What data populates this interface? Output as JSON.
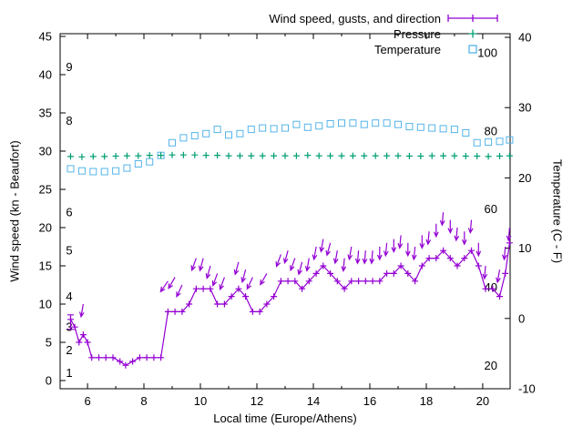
{
  "chart_data": {
    "type": "line",
    "xlabel": "Local time (Europe/Athens)",
    "ylabel_left": "Wind speed (kn - Beaufort)",
    "ylabel_right": "Temperature (C - F)",
    "x_range": [
      5.03,
      20.97
    ],
    "left_range": [
      -1.07,
      45.36
    ],
    "right_range": [
      -10,
      40.52
    ],
    "x_ticks": [
      6,
      8,
      10,
      12,
      14,
      16,
      18,
      20
    ],
    "x_minor_ticks": [
      7,
      9,
      11,
      13,
      15,
      17,
      19
    ],
    "left_ticks": [
      0,
      5,
      10,
      15,
      20,
      25,
      30,
      35,
      40,
      45
    ],
    "right_ticks": [
      -10,
      0,
      10,
      20,
      30,
      40
    ],
    "beaufort_labels": [
      {
        "label": "1",
        "kn": 1
      },
      {
        "label": "2",
        "kn": 4
      },
      {
        "label": "3",
        "kn": 7
      },
      {
        "label": "4",
        "kn": 11
      },
      {
        "label": "5",
        "kn": 17
      },
      {
        "label": "6",
        "kn": 22
      },
      {
        "label": "8",
        "kn": 34
      },
      {
        "label": "9",
        "kn": 41
      }
    ],
    "fahrenheit_labels": [
      {
        "label": "20",
        "c": -6.67
      },
      {
        "label": "40",
        "c": 4.44
      },
      {
        "label": "60",
        "c": 15.56
      },
      {
        "label": "80",
        "c": 26.67
      },
      {
        "label": "100",
        "c": 37.78
      }
    ],
    "legend": [
      {
        "label": "Wind speed, gusts, and direction",
        "color": "#9400d3",
        "sample": "errorbar-plus"
      },
      {
        "label": "Pressure",
        "color": "#009e73",
        "sample": "plus"
      },
      {
        "label": "Temperature",
        "color": "#56b4e9",
        "sample": "square"
      }
    ],
    "series": {
      "wind": {
        "name": "Wind speed (kn)",
        "color": "#9400d3",
        "points": [
          [
            5.4,
            8
          ],
          [
            5.55,
            7
          ],
          [
            5.7,
            5
          ],
          [
            5.85,
            6
          ],
          [
            6.0,
            5
          ],
          [
            6.15,
            3
          ],
          [
            6.4,
            3
          ],
          [
            6.65,
            3
          ],
          [
            6.9,
            3
          ],
          [
            7.15,
            2.5
          ],
          [
            7.35,
            2
          ],
          [
            7.6,
            2.5
          ],
          [
            7.85,
            3
          ],
          [
            8.1,
            3
          ],
          [
            8.35,
            3
          ],
          [
            8.6,
            3
          ],
          [
            8.85,
            9
          ],
          [
            9.1,
            9
          ],
          [
            9.35,
            9
          ],
          [
            9.6,
            10
          ],
          [
            9.85,
            12
          ],
          [
            10.1,
            12
          ],
          [
            10.35,
            12
          ],
          [
            10.6,
            10
          ],
          [
            10.85,
            10
          ],
          [
            11.1,
            11
          ],
          [
            11.35,
            12
          ],
          [
            11.6,
            11
          ],
          [
            11.85,
            9
          ],
          [
            12.1,
            9
          ],
          [
            12.35,
            10
          ],
          [
            12.6,
            11
          ],
          [
            12.85,
            13
          ],
          [
            13.1,
            13
          ],
          [
            13.35,
            13
          ],
          [
            13.6,
            12
          ],
          [
            13.85,
            13
          ],
          [
            14.1,
            14
          ],
          [
            14.35,
            15
          ],
          [
            14.6,
            14
          ],
          [
            14.85,
            13
          ],
          [
            15.1,
            12
          ],
          [
            15.35,
            13
          ],
          [
            15.6,
            13
          ],
          [
            15.85,
            13
          ],
          [
            16.1,
            13
          ],
          [
            16.35,
            13
          ],
          [
            16.6,
            14
          ],
          [
            16.85,
            14
          ],
          [
            17.1,
            15
          ],
          [
            17.35,
            14
          ],
          [
            17.6,
            13
          ],
          [
            17.85,
            15
          ],
          [
            18.1,
            16
          ],
          [
            18.35,
            16
          ],
          [
            18.6,
            17
          ],
          [
            18.85,
            16
          ],
          [
            19.1,
            15
          ],
          [
            19.35,
            16
          ],
          [
            19.6,
            17
          ],
          [
            19.85,
            15
          ],
          [
            20.1,
            12
          ],
          [
            20.35,
            12
          ],
          [
            20.6,
            11
          ],
          [
            20.8,
            14
          ],
          [
            20.95,
            18
          ]
        ]
      },
      "wind_errorbar": {
        "t": 5.4,
        "low": 6.7,
        "high": 8.6
      },
      "gusts": {
        "name": "Gusts and direction (kn, deg)",
        "color": "#9400d3",
        "points": [
          [
            5.85,
            10,
            190
          ],
          [
            8.85,
            13,
            215
          ],
          [
            9.1,
            13.5,
            210
          ],
          [
            9.35,
            12.5,
            205
          ],
          [
            9.85,
            16,
            200
          ],
          [
            10.1,
            16,
            195
          ],
          [
            10.35,
            15,
            195
          ],
          [
            10.6,
            14,
            200
          ],
          [
            10.85,
            13.5,
            200
          ],
          [
            11.35,
            15.5,
            195
          ],
          [
            11.6,
            14.5,
            195
          ],
          [
            11.85,
            13.5,
            205
          ],
          [
            12.35,
            14,
            210
          ],
          [
            12.85,
            16.5,
            200
          ],
          [
            13.1,
            17,
            195
          ],
          [
            13.35,
            16,
            200
          ],
          [
            13.6,
            15.5,
            195
          ],
          [
            13.85,
            16,
            190
          ],
          [
            14.1,
            17.5,
            190
          ],
          [
            14.35,
            18.5,
            190
          ],
          [
            14.6,
            18,
            195
          ],
          [
            14.85,
            17,
            190
          ],
          [
            15.1,
            16,
            185
          ],
          [
            15.35,
            17.5,
            190
          ],
          [
            15.6,
            17,
            185
          ],
          [
            15.85,
            17,
            185
          ],
          [
            16.1,
            17,
            185
          ],
          [
            16.35,
            17.5,
            180
          ],
          [
            16.6,
            18,
            185
          ],
          [
            16.85,
            18.5,
            180
          ],
          [
            17.1,
            19,
            185
          ],
          [
            17.35,
            18,
            180
          ],
          [
            17.6,
            17.5,
            185
          ],
          [
            17.85,
            19,
            180
          ],
          [
            18.1,
            19.5,
            185
          ],
          [
            18.35,
            20.5,
            180
          ],
          [
            18.6,
            22,
            185
          ],
          [
            18.85,
            21,
            180
          ],
          [
            19.1,
            20,
            185
          ],
          [
            19.35,
            19.5,
            180
          ],
          [
            19.6,
            21,
            185
          ],
          [
            19.85,
            18,
            180
          ],
          [
            20.1,
            15,
            185
          ],
          [
            20.6,
            14.5,
            190
          ],
          [
            20.8,
            17.5,
            185
          ],
          [
            20.95,
            20,
            185
          ]
        ]
      },
      "pressure": {
        "name": "Pressure (left-axis units)",
        "color": "#009e73",
        "points": [
          [
            5.4,
            29.3
          ],
          [
            5.8,
            29.25
          ],
          [
            6.2,
            29.3
          ],
          [
            6.6,
            29.3
          ],
          [
            7.0,
            29.35
          ],
          [
            7.4,
            29.4
          ],
          [
            7.8,
            29.4
          ],
          [
            8.2,
            29.45
          ],
          [
            8.6,
            29.45
          ],
          [
            9.0,
            29.5
          ],
          [
            9.4,
            29.5
          ],
          [
            9.8,
            29.5
          ],
          [
            10.2,
            29.45
          ],
          [
            10.6,
            29.45
          ],
          [
            11.0,
            29.4
          ],
          [
            11.4,
            29.4
          ],
          [
            11.8,
            29.4
          ],
          [
            12.2,
            29.4
          ],
          [
            12.6,
            29.4
          ],
          [
            13.0,
            29.4
          ],
          [
            13.4,
            29.4
          ],
          [
            13.8,
            29.45
          ],
          [
            14.2,
            29.4
          ],
          [
            14.6,
            29.4
          ],
          [
            15.0,
            29.4
          ],
          [
            15.4,
            29.4
          ],
          [
            15.8,
            29.4
          ],
          [
            16.2,
            29.4
          ],
          [
            16.6,
            29.4
          ],
          [
            17.0,
            29.4
          ],
          [
            17.4,
            29.35
          ],
          [
            17.8,
            29.35
          ],
          [
            18.2,
            29.4
          ],
          [
            18.6,
            29.4
          ],
          [
            19.0,
            29.4
          ],
          [
            19.4,
            29.35
          ],
          [
            19.8,
            29.35
          ],
          [
            20.2,
            29.3
          ],
          [
            20.6,
            29.35
          ],
          [
            20.95,
            29.4
          ]
        ]
      },
      "temperature": {
        "name": "Temperature (C)",
        "color": "#56b4e9",
        "points": [
          [
            5.4,
            21.3
          ],
          [
            5.8,
            21.0
          ],
          [
            6.2,
            20.9
          ],
          [
            6.6,
            20.9
          ],
          [
            7.0,
            21.0
          ],
          [
            7.4,
            21.4
          ],
          [
            7.8,
            22.0
          ],
          [
            8.2,
            22.3
          ],
          [
            8.6,
            23.2
          ],
          [
            9.0,
            25.0
          ],
          [
            9.4,
            25.7
          ],
          [
            9.8,
            26.0
          ],
          [
            10.2,
            26.3
          ],
          [
            10.6,
            26.9
          ],
          [
            11.0,
            26.1
          ],
          [
            11.4,
            26.3
          ],
          [
            11.8,
            26.9
          ],
          [
            12.2,
            27.1
          ],
          [
            12.6,
            27.0
          ],
          [
            13.0,
            27.1
          ],
          [
            13.4,
            27.6
          ],
          [
            13.8,
            27.2
          ],
          [
            14.2,
            27.4
          ],
          [
            14.6,
            27.7
          ],
          [
            15.0,
            27.8
          ],
          [
            15.4,
            27.8
          ],
          [
            15.8,
            27.6
          ],
          [
            16.2,
            27.8
          ],
          [
            16.6,
            27.8
          ],
          [
            17.0,
            27.6
          ],
          [
            17.4,
            27.3
          ],
          [
            17.8,
            27.2
          ],
          [
            18.2,
            27.1
          ],
          [
            18.6,
            27.0
          ],
          [
            19.0,
            26.9
          ],
          [
            19.4,
            26.4
          ],
          [
            19.8,
            25.0
          ],
          [
            20.2,
            25.1
          ],
          [
            20.6,
            25.2
          ],
          [
            20.95,
            25.4
          ]
        ]
      }
    }
  }
}
